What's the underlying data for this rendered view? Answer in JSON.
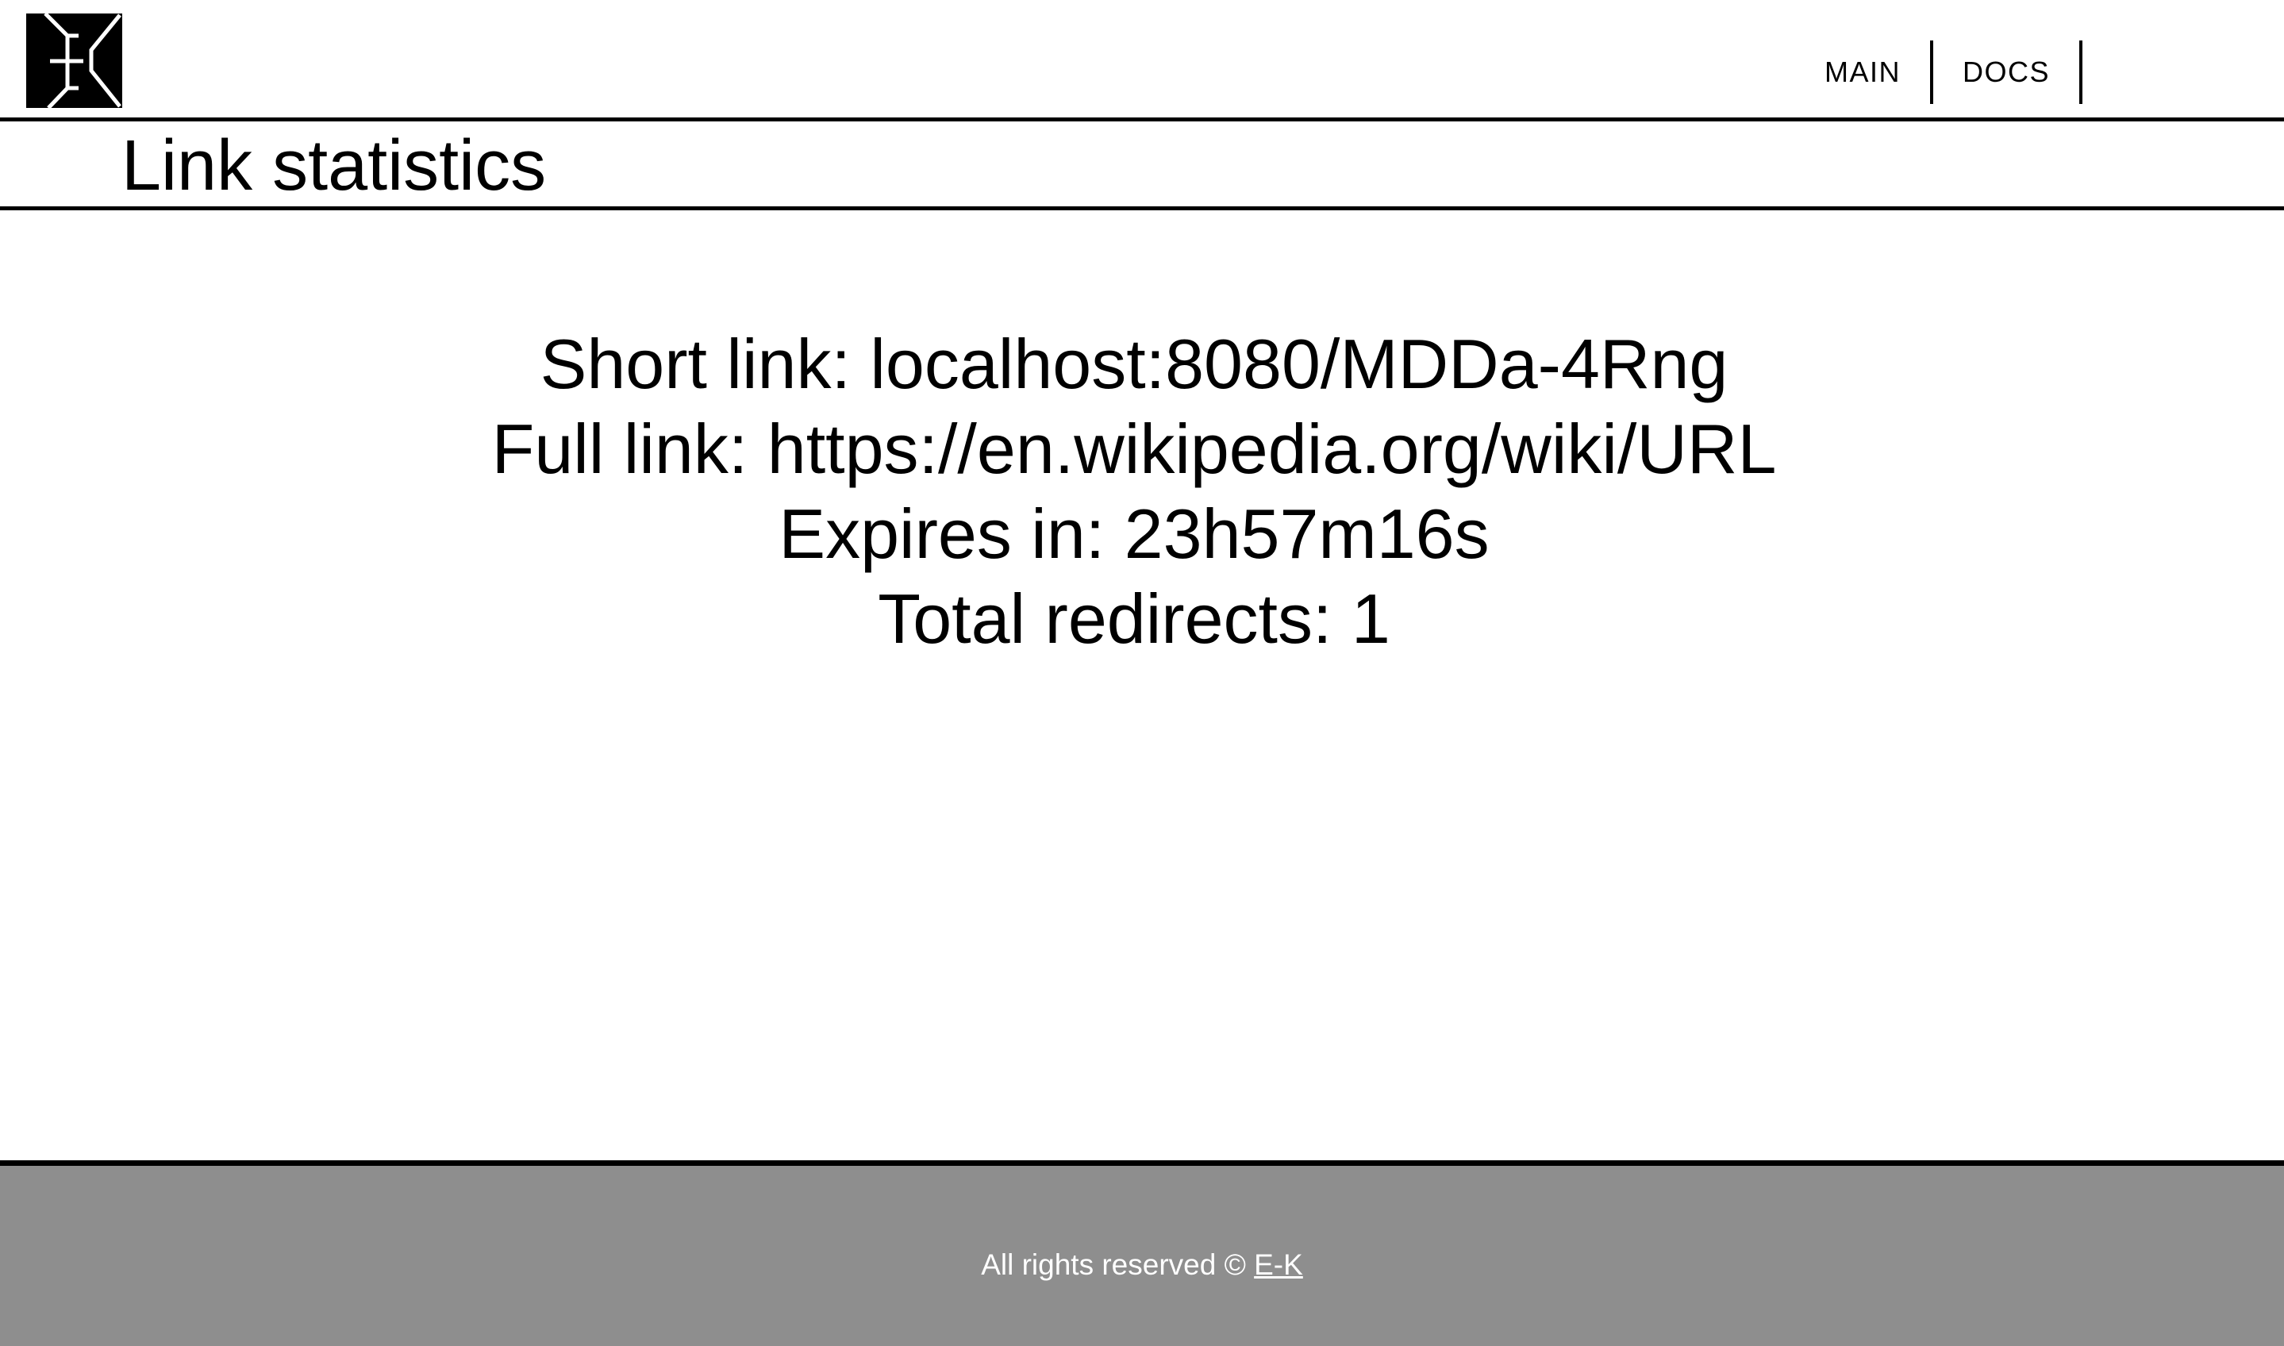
{
  "header": {
    "logo_icon": "ek-logo-icon",
    "nav": [
      {
        "label": "MAIN"
      },
      {
        "label": "DOCS"
      }
    ]
  },
  "title": "Link statistics",
  "stats": {
    "short_link": "Short link: localhost:8080/MDDa-4Rng",
    "full_link": "Full link: https://en.wikipedia.org/wiki/URL",
    "expires_in": "Expires in: 23h57m16s",
    "total_redirects": "Total redirects: 1"
  },
  "footer": {
    "text": "All rights reserved © ",
    "link_label": "E-K",
    "background": "#8e8e8e"
  }
}
